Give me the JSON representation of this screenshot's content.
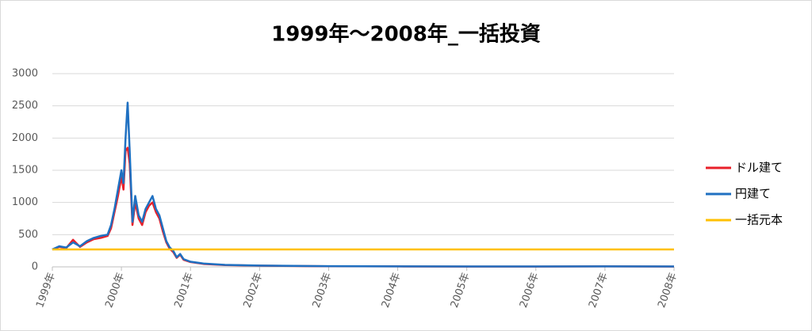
{
  "chart_data": {
    "type": "line",
    "title": "1999年～2008年_一括投資",
    "x": [
      1999.0,
      1999.1,
      1999.2,
      1999.3,
      1999.4,
      1999.5,
      1999.6,
      1999.7,
      1999.8,
      1999.85,
      1999.9,
      1999.95,
      2000.0,
      2000.03,
      2000.06,
      2000.09,
      2000.12,
      2000.16,
      2000.2,
      2000.25,
      2000.3,
      2000.35,
      2000.4,
      2000.45,
      2000.5,
      2000.55,
      2000.6,
      2000.65,
      2000.7,
      2000.75,
      2000.8,
      2000.85,
      2000.9,
      2001.0,
      2001.2,
      2001.5,
      2002.0,
      2002.5,
      2003.0,
      2004.0,
      2005.0,
      2006.0,
      2007.0,
      2008.0
    ],
    "series": [
      {
        "name": "ドル建て",
        "color": "#e8202a",
        "values": [
          270,
          310,
          290,
          420,
          310,
          380,
          430,
          450,
          480,
          600,
          850,
          1100,
          1400,
          1200,
          1800,
          1850,
          1600,
          650,
          1000,
          750,
          650,
          850,
          950,
          1000,
          850,
          750,
          550,
          380,
          280,
          230,
          140,
          190,
          110,
          75,
          45,
          28,
          18,
          14,
          9,
          7,
          5,
          5,
          7,
          5
        ]
      },
      {
        "name": "円建て",
        "color": "#1f70c1",
        "values": [
          270,
          320,
          300,
          380,
          320,
          400,
          450,
          480,
          500,
          650,
          900,
          1200,
          1500,
          1300,
          2000,
          2550,
          1800,
          700,
          1100,
          800,
          700,
          900,
          1000,
          1100,
          900,
          800,
          600,
          400,
          300,
          250,
          150,
          200,
          120,
          80,
          50,
          30,
          20,
          15,
          10,
          8,
          6,
          6,
          8,
          6
        ]
      },
      {
        "name": "一括元本",
        "color": "#ffc000",
        "values": [
          270,
          270,
          270,
          270,
          270,
          270,
          270,
          270,
          270,
          270,
          270,
          270,
          270,
          270,
          270,
          270,
          270,
          270,
          270,
          270,
          270,
          270,
          270,
          270,
          270,
          270,
          270,
          270,
          270,
          270,
          270,
          270,
          270,
          270,
          270,
          270,
          270,
          270,
          270,
          270,
          270,
          270,
          270,
          270
        ]
      }
    ],
    "xlim": [
      1999,
      2008
    ],
    "xticks": [
      {
        "value": 1999,
        "label": "1999年"
      },
      {
        "value": 2000,
        "label": "2000年"
      },
      {
        "value": 2001,
        "label": "2001年"
      },
      {
        "value": 2002,
        "label": "2002年"
      },
      {
        "value": 2003,
        "label": "2003年"
      },
      {
        "value": 2004,
        "label": "2004年"
      },
      {
        "value": 2005,
        "label": "2005年"
      },
      {
        "value": 2006,
        "label": "2006年"
      },
      {
        "value": 2007,
        "label": "2007年"
      },
      {
        "value": 2008,
        "label": "2008年"
      }
    ],
    "ylim": [
      0,
      3000
    ],
    "yticks": [
      0,
      500,
      1000,
      1500,
      2000,
      2500,
      3000
    ],
    "grid": true,
    "legend": "right"
  }
}
